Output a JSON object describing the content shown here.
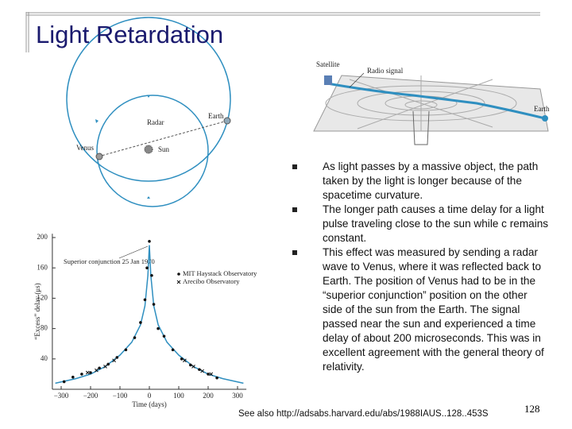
{
  "title": "Light Retardation",
  "bullets": [
    "As light passes by a massive object, the path taken by the light is longer because of the spacetime curvature.",
    "The longer path causes a time delay for a light pulse traveling close to the sun while c remains constant.",
    "This effect was measured by sending a radar wave to Venus, where it was reflected back to Earth. The position of Venus had to be in the “superior conjunction” position on the other side of the sun from the Earth. The signal passed near the sun and experienced a time delay of about 200 microseconds. This was in excellent agreement with the general theory of relativity."
  ],
  "footer": "See also http://adsabs.harvard.edu/abs/1988IAUS..128..453S",
  "page_number": "128",
  "spacetime_figure": {
    "satellite": "Satellite",
    "signal": "Radio signal",
    "earth": "Earth"
  },
  "orbit_figure": {
    "earth": "Earth",
    "radar": "Radar",
    "venus": "Venus",
    "sun": "Sun"
  },
  "chart_data": {
    "type": "scatter",
    "x_label": "Time (days)",
    "y_label": "“Excess” delay (μs)",
    "annotation": "Superior conjunction 25 Jan 1970",
    "xlim": [
      -330,
      330
    ],
    "ylim": [
      0,
      205
    ],
    "xticks": [
      {
        "value": -300,
        "label": "−300"
      },
      {
        "value": -200,
        "label": "−200"
      },
      {
        "value": -100,
        "label": "−100"
      },
      0,
      100,
      200,
      300
    ],
    "yticks": [
      40,
      80,
      120,
      160,
      200
    ],
    "color": "#2f8fc0",
    "curve": {
      "x": [
        -320,
        -250,
        -200,
        -150,
        -100,
        -60,
        -30,
        -15,
        -5,
        0,
        5,
        15,
        30,
        60,
        100,
        150,
        200,
        250,
        320
      ],
      "y": [
        8,
        14,
        20,
        30,
        45,
        62,
        85,
        110,
        150,
        190,
        150,
        110,
        85,
        62,
        45,
        30,
        20,
        14,
        8
      ]
    },
    "series": [
      {
        "name": "MIT Haystack Observatory",
        "x": [
          -290,
          -260,
          -230,
          -200,
          -170,
          -140,
          -110,
          -80,
          -50,
          -30,
          -15,
          -8,
          0,
          8,
          15,
          30,
          50,
          80,
          110,
          140,
          170,
          200,
          230
        ],
        "y": [
          10,
          16,
          20,
          22,
          28,
          33,
          42,
          52,
          68,
          88,
          118,
          160,
          195,
          150,
          112,
          80,
          70,
          52,
          40,
          32,
          26,
          20,
          15
        ]
      },
      {
        "name": "Arecibo Observatory",
        "x": [
          -210,
          -180,
          -150,
          -120,
          120,
          150,
          180,
          210
        ],
        "y": [
          22,
          25,
          30,
          38,
          38,
          30,
          24,
          20
        ]
      }
    ]
  }
}
